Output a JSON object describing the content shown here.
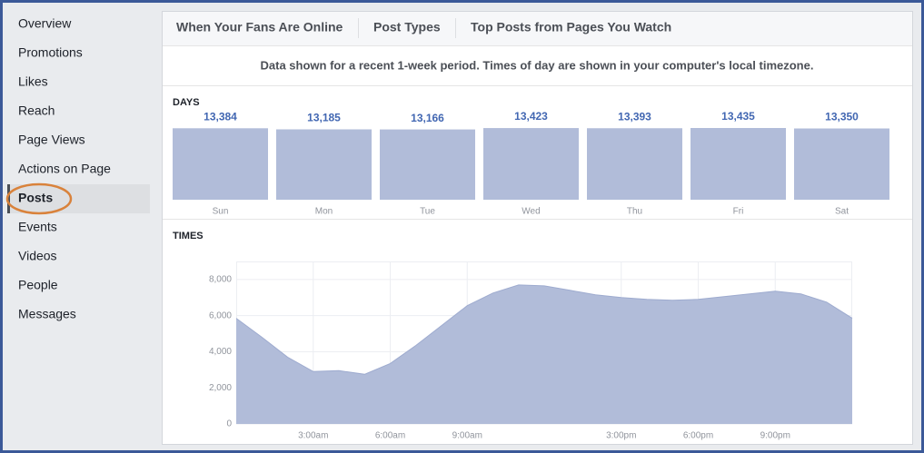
{
  "sidebar": {
    "items": [
      "Overview",
      "Promotions",
      "Likes",
      "Reach",
      "Page Views",
      "Actions on Page",
      "Posts",
      "Events",
      "Videos",
      "People",
      "Messages"
    ],
    "selected": "Posts"
  },
  "tabs": {
    "items": [
      "When Your Fans Are Online",
      "Post Types",
      "Top Posts from Pages You Watch"
    ],
    "active": "When Your Fans Are Online"
  },
  "note": "Data shown for a recent 1-week period. Times of day are shown in your computer's local timezone.",
  "days_chart": {
    "type": "bar",
    "title": "DAYS",
    "categories": [
      "Sun",
      "Mon",
      "Tue",
      "Wed",
      "Thu",
      "Fri",
      "Sat"
    ],
    "values": [
      13384,
      13185,
      13166,
      13423,
      13393,
      13435,
      13350
    ],
    "value_labels": [
      "13,384",
      "13,185",
      "13,166",
      "13,423",
      "13,393",
      "13,435",
      "13,350"
    ],
    "color": "#b1bcd9"
  },
  "times_chart": {
    "type": "area",
    "title": "TIMES",
    "x": [
      0,
      1,
      2,
      3,
      4,
      5,
      6,
      7,
      8,
      9,
      10,
      11,
      12,
      13,
      14,
      15,
      16,
      17,
      18,
      19,
      20,
      21,
      22,
      23,
      24
    ],
    "values": [
      5850,
      4800,
      3700,
      2900,
      2950,
      2750,
      3350,
      4350,
      5450,
      6550,
      7250,
      7700,
      7650,
      7400,
      7150,
      7000,
      6900,
      6850,
      6900,
      7050,
      7200,
      7350,
      7200,
      6750,
      5850
    ],
    "xlim": [
      0,
      24
    ],
    "ylim": [
      0,
      9000
    ],
    "xticks": [
      {
        "value": 3,
        "label": "3:00am"
      },
      {
        "value": 6,
        "label": "6:00am"
      },
      {
        "value": 9,
        "label": "9:00am"
      },
      {
        "value": 15,
        "label": "3:00pm"
      },
      {
        "value": 18,
        "label": "6:00pm"
      },
      {
        "value": 21,
        "label": "9:00pm"
      }
    ],
    "yticks": [
      0,
      {
        "value": 2000,
        "label": "2,000"
      },
      {
        "value": 4000,
        "label": "4,000"
      },
      {
        "value": 6000,
        "label": "6,000"
      },
      {
        "value": 8000,
        "label": "8,000"
      }
    ],
    "color": "#b1bcd9",
    "grid": true
  }
}
